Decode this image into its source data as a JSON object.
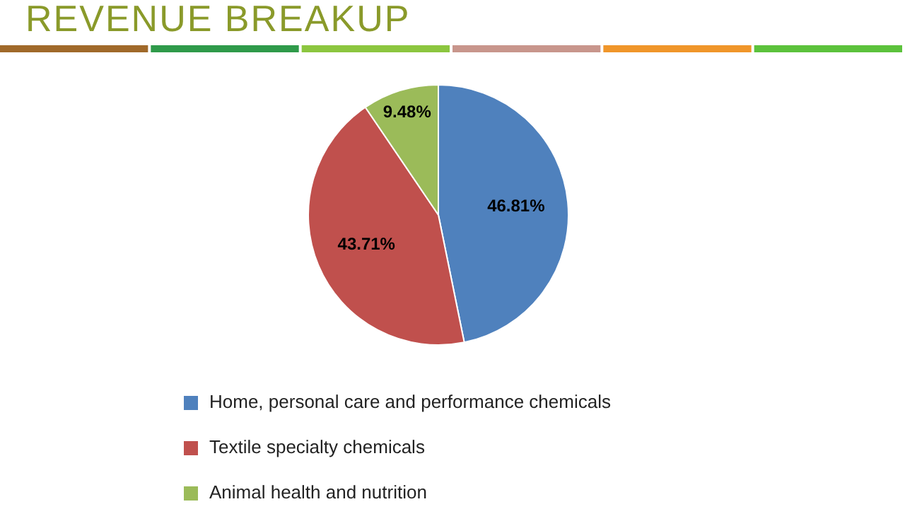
{
  "chart_data": {
    "type": "pie",
    "title": "REVENUE BREAKUP",
    "categories": [
      "Home, personal care and performance chemicals",
      "Textile specialty chemicals",
      "Animal health and nutrition"
    ],
    "values": [
      46.81,
      43.71,
      9.48
    ],
    "colors": [
      "#4f81bd",
      "#c0504d",
      "#9bbb59"
    ],
    "value_labels": [
      "46.81%",
      "43.71%",
      "9.48%"
    ],
    "legend": "bottom"
  }
}
